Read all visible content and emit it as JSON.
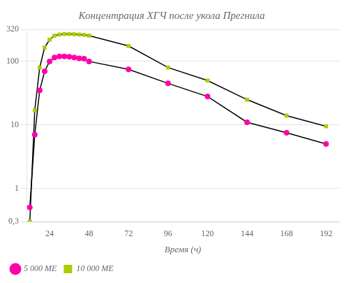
{
  "chart_data": {
    "type": "line",
    "title": "Концентрация ХГЧ после укола Прегнила",
    "xlabel": "Время (ч)",
    "series": [
      {
        "name": "5 000 МЕ",
        "color": "#FF00AA",
        "marker": "circle",
        "x": [
          12,
          15,
          18,
          21,
          24,
          27,
          30,
          33,
          36,
          39,
          42,
          45,
          48,
          72,
          96,
          120,
          144,
          168,
          192
        ],
        "values": [
          0.5,
          7,
          35,
          70,
          100,
          115,
          120,
          120,
          118,
          115,
          112,
          110,
          100,
          75,
          45,
          28,
          11,
          7.5,
          5
        ]
      },
      {
        "name": "10 000 МЕ",
        "color": "#AACC00",
        "marker": "square",
        "x": [
          12,
          15,
          18,
          21,
          24,
          27,
          30,
          33,
          36,
          39,
          42,
          45,
          48,
          72,
          96,
          120,
          144,
          168,
          192
        ],
        "values": [
          0.3,
          17,
          80,
          165,
          220,
          255,
          265,
          270,
          270,
          268,
          265,
          262,
          255,
          175,
          80,
          50,
          25,
          14,
          9.5
        ]
      }
    ],
    "log": "y",
    "xlim": [
      10,
      200
    ],
    "xticks": [
      24,
      48,
      72,
      96,
      120,
      144,
      168,
      192
    ],
    "ylim": [
      0.3,
      320
    ],
    "yticks": [
      {
        "value": 0.3,
        "label": "0,3"
      },
      1,
      10,
      100,
      320
    ],
    "grid": "y",
    "legend": "lower left"
  }
}
